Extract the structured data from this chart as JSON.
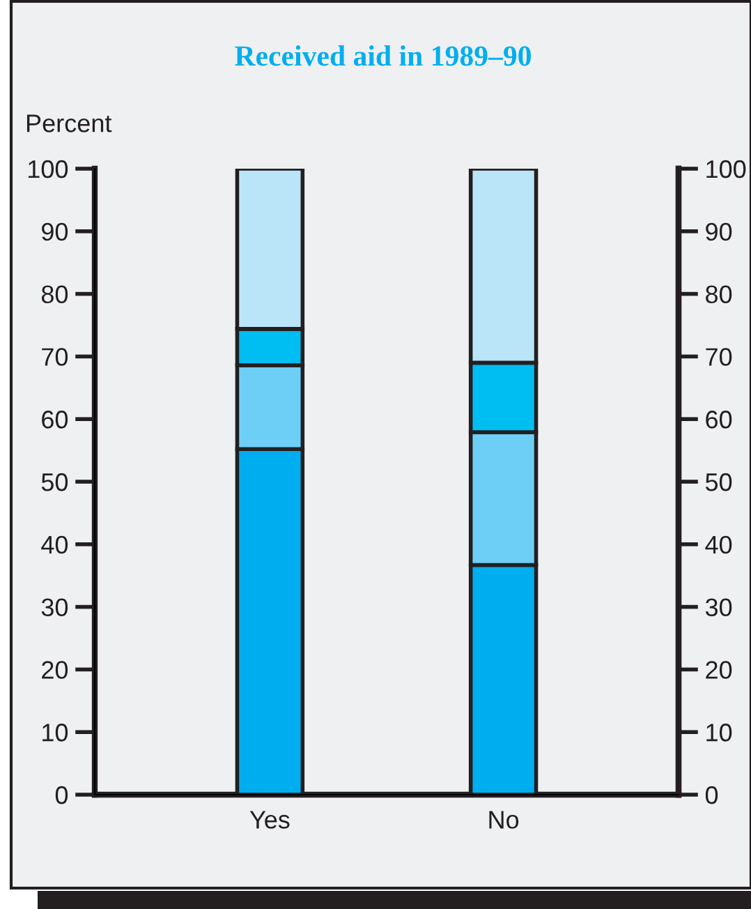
{
  "chart_data": {
    "type": "bar",
    "title": "Received aid in 1989–90",
    "ylabel": "Percent",
    "categories": [
      "Yes",
      "No"
    ],
    "stacked": true,
    "series": [
      {
        "color": "#00aeef",
        "values": [
          55.2,
          36.7
        ]
      },
      {
        "color": "#6dcff6",
        "values": [
          13.4,
          21.2
        ]
      },
      {
        "color": "#00bdf2",
        "values": [
          5.8,
          11.1
        ]
      },
      {
        "color": "#bae5f8",
        "values": [
          25.6,
          31.0
        ]
      }
    ],
    "ylim": [
      0,
      100
    ],
    "yticks": [
      0,
      10,
      20,
      30,
      40,
      50,
      60,
      70,
      80,
      90,
      100
    ],
    "y2lim": [
      0,
      100
    ],
    "y2ticks": [
      0,
      10,
      20,
      30,
      40,
      50,
      60,
      70,
      80,
      90,
      100
    ],
    "grid": false,
    "legend": false
  }
}
